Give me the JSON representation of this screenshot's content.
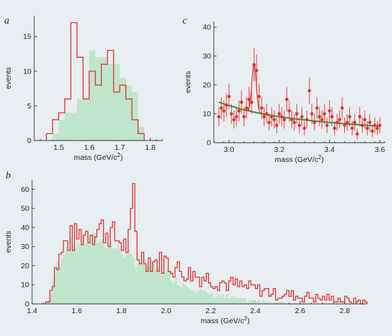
{
  "colors": {
    "background": "#e8eef2",
    "histogram_line": "#e0312a",
    "histogram_fill": "#bfe6cc",
    "fit_line": "#1f9a3a",
    "data_points": "#e0312a"
  },
  "chart_data": [
    {
      "panel": "a",
      "type": "bar",
      "xlabel": "mass (GeV/c",
      "xlabel_sup": "2",
      "xlabel_end": ")",
      "ylabel": "events",
      "xlim": [
        1.42,
        1.84
      ],
      "ylim": [
        0,
        18
      ],
      "xticks": [
        1.5,
        1.6,
        1.7,
        1.8
      ],
      "yticks": [
        0,
        5,
        10,
        15
      ],
      "xtick_labels": [
        "1.5",
        "1.6",
        "1.7",
        "1.8"
      ],
      "ytick_labels": [
        "0",
        "5",
        "10",
        "15"
      ],
      "bin_edges": [
        1.46,
        1.48,
        1.5,
        1.52,
        1.54,
        1.56,
        1.58,
        1.6,
        1.62,
        1.64,
        1.66,
        1.68,
        1.7,
        1.72,
        1.74,
        1.76,
        1.78
      ],
      "series": [
        {
          "kind": "outline",
          "values": [
            1,
            3,
            4,
            6,
            17,
            12,
            6,
            10,
            8,
            11,
            13,
            7,
            8,
            6,
            3,
            1
          ]
        },
        {
          "kind": "filled",
          "values": [
            0,
            1,
            3,
            4,
            4,
            6,
            6,
            13,
            12,
            12,
            11,
            11,
            9,
            8,
            7,
            2
          ]
        }
      ]
    },
    {
      "panel": "c",
      "type": "scatter",
      "xlabel": "mass (GeV/c",
      "xlabel_sup": "2",
      "xlabel_end": ")",
      "ylabel": "events",
      "xlim": [
        2.94,
        3.62
      ],
      "ylim": [
        0,
        42
      ],
      "xticks": [
        3.0,
        3.2,
        3.4,
        3.6
      ],
      "yticks": [
        0,
        10,
        20,
        30,
        40
      ],
      "xtick_labels": [
        "3.0",
        "3.2",
        "3.4",
        "3.6"
      ],
      "ytick_labels": [
        "0",
        "10",
        "20",
        "30",
        "40"
      ],
      "points": [
        [
          2.96,
          9
        ],
        [
          2.97,
          12
        ],
        [
          2.98,
          11
        ],
        [
          2.99,
          13
        ],
        [
          3.0,
          16
        ],
        [
          3.01,
          10
        ],
        [
          3.02,
          8
        ],
        [
          3.03,
          9
        ],
        [
          3.04,
          11
        ],
        [
          3.05,
          14
        ],
        [
          3.06,
          9
        ],
        [
          3.07,
          12
        ],
        [
          3.08,
          15
        ],
        [
          3.09,
          14
        ],
        [
          3.1,
          27
        ],
        [
          3.11,
          25
        ],
        [
          3.12,
          16
        ],
        [
          3.13,
          12
        ],
        [
          3.14,
          9
        ],
        [
          3.15,
          10
        ],
        [
          3.16,
          7
        ],
        [
          3.17,
          9
        ],
        [
          3.18,
          8
        ],
        [
          3.19,
          6
        ],
        [
          3.2,
          10
        ],
        [
          3.21,
          9
        ],
        [
          3.22,
          8
        ],
        [
          3.23,
          15
        ],
        [
          3.24,
          11
        ],
        [
          3.25,
          8
        ],
        [
          3.26,
          7
        ],
        [
          3.27,
          10
        ],
        [
          3.28,
          6
        ],
        [
          3.29,
          9
        ],
        [
          3.3,
          5
        ],
        [
          3.31,
          8
        ],
        [
          3.32,
          18
        ],
        [
          3.33,
          10
        ],
        [
          3.34,
          7
        ],
        [
          3.35,
          12
        ],
        [
          3.36,
          9
        ],
        [
          3.37,
          8
        ],
        [
          3.38,
          10
        ],
        [
          3.39,
          6
        ],
        [
          3.4,
          11
        ],
        [
          3.41,
          9
        ],
        [
          3.42,
          5
        ],
        [
          3.43,
          7
        ],
        [
          3.44,
          8
        ],
        [
          3.45,
          12
        ],
        [
          3.46,
          6
        ],
        [
          3.47,
          7
        ],
        [
          3.48,
          9
        ],
        [
          3.49,
          5
        ],
        [
          3.5,
          7
        ],
        [
          3.51,
          3
        ],
        [
          3.52,
          9
        ],
        [
          3.53,
          6
        ],
        [
          3.54,
          8
        ],
        [
          3.55,
          5
        ],
        [
          3.56,
          7
        ],
        [
          3.57,
          4
        ],
        [
          3.58,
          6
        ],
        [
          3.59,
          5
        ],
        [
          3.6,
          6
        ]
      ],
      "fit_curve": [
        [
          2.96,
          14
        ],
        [
          3.0,
          12.9
        ],
        [
          3.05,
          11.6
        ],
        [
          3.1,
          10.6
        ],
        [
          3.15,
          9.7
        ],
        [
          3.2,
          9.0
        ],
        [
          3.25,
          8.4
        ],
        [
          3.3,
          7.9
        ],
        [
          3.35,
          7.4
        ],
        [
          3.4,
          7.0
        ],
        [
          3.45,
          6.6
        ],
        [
          3.5,
          6.3
        ],
        [
          3.55,
          6.0
        ],
        [
          3.6,
          5.8
        ]
      ]
    },
    {
      "panel": "b",
      "type": "bar",
      "xlabel": "mass (GeV/c",
      "xlabel_sup": "2",
      "xlabel_end": ")",
      "ylabel": "events",
      "xlim": [
        1.4,
        2.9
      ],
      "ylim": [
        0,
        65
      ],
      "xticks": [
        1.4,
        1.6,
        1.8,
        2.0,
        2.2,
        2.4,
        2.6,
        2.8
      ],
      "yticks": [
        0,
        10,
        20,
        30,
        40,
        50,
        60
      ],
      "xtick_labels": [
        "1.4",
        "1.6",
        "1.8",
        "2.0",
        "2.2",
        "2.4",
        "2.6",
        "2.8"
      ],
      "ytick_labels": [
        "0",
        "10",
        "20",
        "30",
        "40",
        "50",
        "60"
      ],
      "outline_knots": [
        [
          1.46,
          0
        ],
        [
          1.48,
          4
        ],
        [
          1.5,
          16
        ],
        [
          1.52,
          22
        ],
        [
          1.55,
          32
        ],
        [
          1.58,
          34
        ],
        [
          1.62,
          36
        ],
        [
          1.66,
          38
        ],
        [
          1.7,
          40
        ],
        [
          1.74,
          38
        ],
        [
          1.78,
          34
        ],
        [
          1.82,
          30
        ],
        [
          1.84,
          34
        ],
        [
          1.855,
          58
        ],
        [
          1.87,
          26
        ],
        [
          1.9,
          24
        ],
        [
          1.95,
          22
        ],
        [
          2.0,
          22
        ],
        [
          2.05,
          18
        ],
        [
          2.1,
          16
        ],
        [
          2.2,
          13
        ],
        [
          2.3,
          10
        ],
        [
          2.4,
          8
        ],
        [
          2.5,
          5
        ],
        [
          2.6,
          4
        ],
        [
          2.7,
          3
        ],
        [
          2.8,
          2
        ],
        [
          2.9,
          1
        ]
      ],
      "fill_knots": [
        [
          1.46,
          0
        ],
        [
          1.48,
          3
        ],
        [
          1.5,
          14
        ],
        [
          1.52,
          22
        ],
        [
          1.55,
          30
        ],
        [
          1.6,
          32
        ],
        [
          1.65,
          33
        ],
        [
          1.7,
          34
        ],
        [
          1.75,
          31
        ],
        [
          1.8,
          28
        ],
        [
          1.85,
          23
        ],
        [
          1.9,
          21
        ],
        [
          1.95,
          19
        ],
        [
          2.0,
          16
        ],
        [
          2.05,
          12
        ],
        [
          2.1,
          10
        ],
        [
          2.15,
          7
        ],
        [
          2.2,
          5
        ],
        [
          2.3,
          3
        ],
        [
          2.4,
          1.5
        ],
        [
          2.5,
          0.6
        ],
        [
          2.6,
          0
        ]
      ]
    }
  ]
}
